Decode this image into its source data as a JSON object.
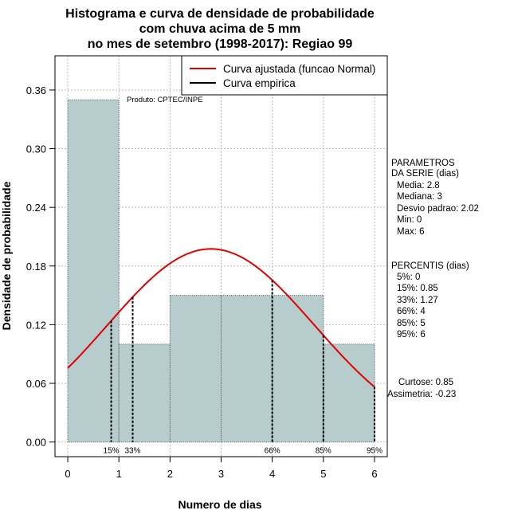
{
  "chart_data": {
    "type": "histogram",
    "title_lines": [
      "Histograma e curva de densidade de probabilidade",
      "com chuva acima de 5 mm",
      "no mes de setembro (1998-2017): Regiao 99"
    ],
    "xlabel": "Numero de dias",
    "ylabel": "Densidade de probabilidade",
    "xlim": [
      -0.25,
      6.25
    ],
    "ylim": [
      -0.015,
      0.395
    ],
    "x_ticks": [
      0,
      1,
      2,
      3,
      4,
      5,
      6
    ],
    "y_ticks": [
      0.0,
      0.06,
      0.12,
      0.18,
      0.24,
      0.3,
      0.36
    ],
    "y_tick_labels": [
      "0.00",
      "0.06",
      "0.12",
      "0.18",
      "0.24",
      "0.30",
      "0.36"
    ],
    "grid": true,
    "bins": [
      {
        "x0": 0,
        "x1": 1,
        "density": 0.35
      },
      {
        "x0": 1,
        "x1": 2,
        "density": 0.1
      },
      {
        "x0": 2,
        "x1": 3,
        "density": 0.15
      },
      {
        "x0": 3,
        "x1": 4,
        "density": 0.15
      },
      {
        "x0": 4,
        "x1": 5,
        "density": 0.15
      },
      {
        "x0": 5,
        "x1": 6,
        "density": 0.1
      }
    ],
    "fitted_curve": {
      "name": "Curva ajustada (funcao Normal)",
      "distribution": "normal",
      "mean": 2.8,
      "sd": 2.02,
      "x_range": [
        0,
        6
      ]
    },
    "empirical_curve": {
      "name": "Curva empirica"
    },
    "percentile_markers": [
      {
        "label": "15%",
        "x": 0.85
      },
      {
        "label": "33%",
        "x": 1.27
      },
      {
        "label": "66%",
        "x": 4
      },
      {
        "label": "85%",
        "x": 5
      },
      {
        "label": "95%",
        "x": 6
      }
    ],
    "legend_position": "top-right",
    "credit": "Produto: CPTEC/INPE",
    "colors": {
      "bars": "#b7cdcd",
      "fitted": "#e00000",
      "empirical": "#000000",
      "grid": "#bbbbbb"
    }
  },
  "side_panel": {
    "params_title_lines": [
      "PARAMETROS",
      "DA SERIE (dias)"
    ],
    "params": [
      "Media: 2.8",
      "Mediana: 3",
      "Desvio padrao: 2.02",
      "Min: 0",
      "Max: 6"
    ],
    "pct_title": "PERCENTIS (dias)",
    "percentiles": [
      "5%: 0",
      "15%: 0.85",
      "33%: 1.27",
      "66%: 4",
      "85%: 5",
      "95%: 6"
    ],
    "curtose": "Curtose: 0.85",
    "assimetria": "Assimetria: -0.23"
  }
}
